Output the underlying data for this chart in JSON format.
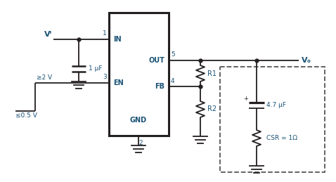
{
  "fig_width": 4.78,
  "fig_height": 2.59,
  "dpi": 100,
  "bg_color": "#ffffff",
  "line_color": "#231f20",
  "text_color": "#1a5276",
  "labels": {
    "VI": "Vᴵ",
    "cap_in": "1 μF",
    "en_top": "≥2 V",
    "en_bot": "≤0.5 V",
    "pin1": "1",
    "pin2": "2",
    "pin3": "3",
    "pin4": "4",
    "pin5": "5",
    "IN": "IN",
    "OUT": "OUT",
    "EN": "EN",
    "FB": "FB",
    "GND": "GND",
    "R1": "R1",
    "R2": "R2",
    "VO": "Vₒ",
    "cap_out": "4.7 μF",
    "csr": "CSR = 1Ω"
  }
}
